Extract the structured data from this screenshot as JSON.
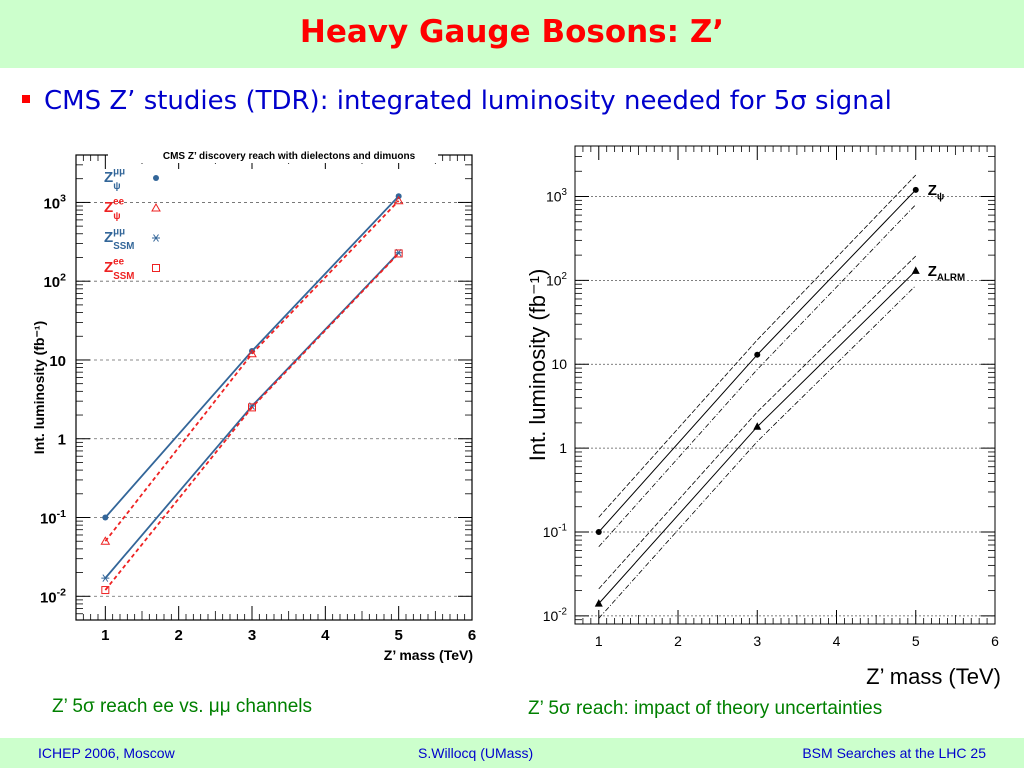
{
  "slide": {
    "title": "Heavy Gauge Bosons:  Z’",
    "bullet_text": "CMS Z’ studies (TDR): integrated luminosity needed for 5σ signal",
    "caption_left": "Z’ 5σ reach ee vs. μμ channels",
    "caption_right": "Z’ 5σ reach: impact of theory uncertainties"
  },
  "footer": {
    "left": "ICHEP 2006, Moscow",
    "center": "S.Willocq  (UMass)",
    "right": "BSM Searches at the LHC  25"
  },
  "colors": {
    "title": "#ff0000",
    "bullet_text": "#0000cc",
    "caption": "#008000",
    "band": "#ccffcc",
    "mumu": "#336699",
    "ee": "#ee2222",
    "theory": "#000000"
  },
  "chart_data": [
    {
      "type": "line",
      "title": "CMS Z’ discovery reach with dielectons and dimuons",
      "xlabel": "Z’ mass (TeV)",
      "ylabel": "Int. luminosity (fb⁻¹)",
      "xlim": [
        0.6,
        6
      ],
      "ylim": [
        0.005,
        4000
      ],
      "yscale": "log",
      "x_ticks": [
        1,
        2,
        3,
        4,
        5,
        6
      ],
      "y_ticks": [
        0.01,
        0.1,
        1,
        10,
        100,
        1000
      ],
      "y_tick_labels": [
        [
          "10",
          "-2"
        ],
        [
          "10",
          "-1"
        ],
        [
          "1",
          ""
        ],
        [
          "10",
          ""
        ],
        [
          "10",
          "2"
        ],
        [
          "10",
          "3"
        ]
      ],
      "grid": "horizontal-dashed",
      "legend_position": "top-left",
      "series": [
        {
          "name": "Z_ψ μμ",
          "label": {
            "base": "Z",
            "sup": "μμ",
            "sub": "ψ"
          },
          "color": "#336699",
          "marker": "filled-circle",
          "line": "solid",
          "x": [
            1,
            3,
            5
          ],
          "y": [
            0.1,
            13,
            1200
          ]
        },
        {
          "name": "Z_ψ ee",
          "label": {
            "base": "Z",
            "sup": "ee",
            "sub": "ψ"
          },
          "color": "#ee2222",
          "marker": "open-triangle",
          "line": "dashed",
          "x": [
            1,
            3,
            5
          ],
          "y": [
            0.05,
            12,
            1050
          ]
        },
        {
          "name": "Z_SSM μμ",
          "label": {
            "base": "Z",
            "sup": "μμ",
            "sub": "SSM"
          },
          "color": "#336699",
          "marker": "asterisk",
          "line": "solid",
          "x": [
            1,
            3,
            5
          ],
          "y": [
            0.017,
            2.6,
            230
          ]
        },
        {
          "name": "Z_SSM ee",
          "label": {
            "base": "Z",
            "sup": "ee",
            "sub": "SSM"
          },
          "color": "#ee2222",
          "marker": "open-square",
          "line": "dashed",
          "x": [
            1,
            3,
            5
          ],
          "y": [
            0.012,
            2.5,
            225
          ]
        }
      ]
    },
    {
      "type": "line",
      "title": "",
      "xlabel": "Z’ mass (TeV)",
      "ylabel": "Int. luminosity (fb⁻¹)",
      "xlim": [
        0.7,
        6
      ],
      "ylim": [
        0.008,
        4000
      ],
      "yscale": "log",
      "x_ticks": [
        1,
        2,
        3,
        4,
        5,
        6
      ],
      "y_ticks": [
        0.01,
        0.1,
        1,
        10,
        100,
        1000
      ],
      "y_tick_labels": [
        [
          "10",
          "-2"
        ],
        [
          "10",
          "-1"
        ],
        [
          "1",
          ""
        ],
        [
          "10",
          ""
        ],
        [
          "10",
          "2"
        ],
        [
          "10",
          "3"
        ]
      ],
      "grid": "horizontal-dashed",
      "legend_position": "inline-right",
      "series": [
        {
          "name": "Z_ψ",
          "label": {
            "base": "Z",
            "sub": "ψ"
          },
          "color": "#000000",
          "marker": "filled-circle",
          "x": [
            1,
            3,
            5
          ],
          "y": [
            0.1,
            13,
            1200
          ],
          "band_factor": 1.5
        },
        {
          "name": "Z_ALRM",
          "label": {
            "base": "Z",
            "sub": "ALRM"
          },
          "color": "#000000",
          "marker": "filled-triangle",
          "x": [
            1,
            3,
            5
          ],
          "y": [
            0.014,
            1.8,
            130
          ],
          "band_factor": 1.5
        }
      ]
    }
  ]
}
